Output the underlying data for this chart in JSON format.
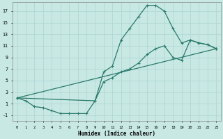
{
  "xlabel": "Humidex (Indice chaleur)",
  "bg_color": "#c8e8e4",
  "line_color": "#2a7a6a",
  "grid_color": "#b0d8d4",
  "xlim": [
    -0.5,
    23.5
  ],
  "ylim": [
    -2.0,
    18.5
  ],
  "xticks": [
    0,
    1,
    2,
    3,
    4,
    5,
    6,
    7,
    8,
    9,
    10,
    11,
    12,
    13,
    14,
    15,
    16,
    17,
    18,
    19,
    20,
    21,
    22,
    23
  ],
  "yticks": [
    -1,
    1,
    3,
    5,
    7,
    9,
    11,
    13,
    15,
    17
  ],
  "line1_x": [
    0,
    1,
    2,
    3,
    4,
    5,
    6,
    7,
    8,
    9,
    10,
    11,
    12,
    13,
    14,
    15,
    16,
    17,
    18,
    19,
    20,
    21,
    22,
    23
  ],
  "line1_y": [
    2.0,
    1.5,
    0.5,
    0.3,
    -0.2,
    -0.7,
    -0.7,
    -0.7,
    -0.7,
    1.5,
    6.5,
    7.5,
    12.0,
    14.0,
    16.0,
    18.0,
    18.0,
    17.0,
    14.0,
    11.5,
    12.0,
    11.5,
    11.2,
    10.5
  ],
  "line2_x": [
    0,
    9,
    10,
    11,
    12,
    13,
    14,
    15,
    16,
    17,
    18,
    19,
    20,
    21,
    22,
    23
  ],
  "line2_y": [
    2.0,
    1.5,
    4.8,
    5.5,
    6.5,
    7.0,
    8.0,
    9.5,
    10.5,
    11.0,
    9.0,
    8.5,
    12.0,
    11.5,
    11.2,
    10.5
  ],
  "line3_x": [
    0,
    23
  ],
  "line3_y": [
    2.0,
    10.5
  ]
}
